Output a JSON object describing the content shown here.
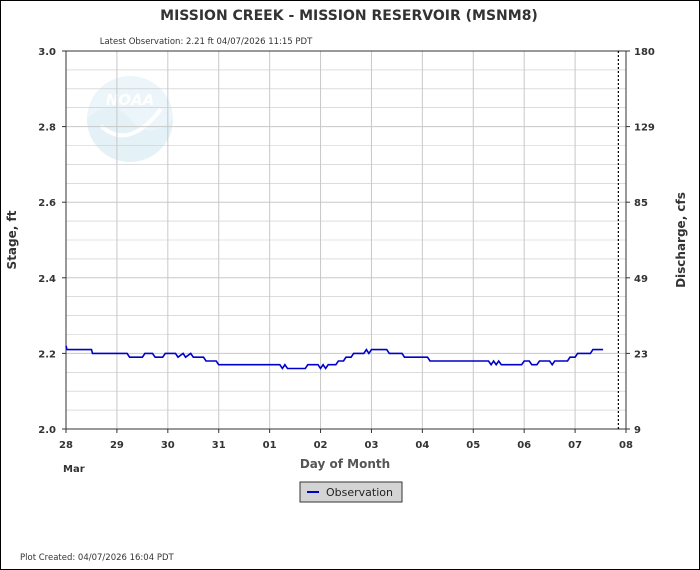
{
  "chart_data": {
    "type": "line",
    "title": "MISSION CREEK - MISSION RESERVOIR  (MSNM8)",
    "subtitle": "Latest Observation: 2.21 ft 04/07/2026 11:15 PDT",
    "xlabel": "Day of Month",
    "ylabel": "Stage, ft",
    "y2label": "Discharge, cfs",
    "x_ticks": [
      "28",
      "29",
      "30",
      "31",
      "01",
      "02",
      "03",
      "04",
      "05",
      "06",
      "07",
      "08"
    ],
    "x_month_label": "Mar",
    "y_ticks": [
      "2.0",
      "2.2",
      "2.4",
      "2.6",
      "2.8",
      "3.0"
    ],
    "y2_ticks": [
      "9",
      "23",
      "49",
      "85",
      "129",
      "180"
    ],
    "xlim_days": [
      0,
      11
    ],
    "ylim": [
      2.0,
      3.0
    ],
    "grid": true,
    "legend_position": "bottom-center",
    "colors": {
      "observation": "#0000cc",
      "grid": "#c8c8c8",
      "legend_bg": "#d4d4d4"
    },
    "series": [
      {
        "name": "Observation",
        "points": [
          [
            0.0,
            2.22
          ],
          [
            0.02,
            2.21
          ],
          [
            0.5,
            2.21
          ],
          [
            0.52,
            2.2
          ],
          [
            1.2,
            2.2
          ],
          [
            1.25,
            2.19
          ],
          [
            1.5,
            2.19
          ],
          [
            1.55,
            2.2
          ],
          [
            1.7,
            2.2
          ],
          [
            1.75,
            2.19
          ],
          [
            1.9,
            2.19
          ],
          [
            1.95,
            2.2
          ],
          [
            2.15,
            2.2
          ],
          [
            2.2,
            2.19
          ],
          [
            2.3,
            2.2
          ],
          [
            2.35,
            2.19
          ],
          [
            2.45,
            2.2
          ],
          [
            2.5,
            2.19
          ],
          [
            2.7,
            2.19
          ],
          [
            2.75,
            2.18
          ],
          [
            2.95,
            2.18
          ],
          [
            3.0,
            2.17
          ],
          [
            4.2,
            2.17
          ],
          [
            4.25,
            2.16
          ],
          [
            4.3,
            2.17
          ],
          [
            4.35,
            2.16
          ],
          [
            4.7,
            2.16
          ],
          [
            4.75,
            2.17
          ],
          [
            4.95,
            2.17
          ],
          [
            5.0,
            2.16
          ],
          [
            5.05,
            2.17
          ],
          [
            5.1,
            2.16
          ],
          [
            5.15,
            2.17
          ],
          [
            5.3,
            2.17
          ],
          [
            5.35,
            2.18
          ],
          [
            5.45,
            2.18
          ],
          [
            5.5,
            2.19
          ],
          [
            5.6,
            2.19
          ],
          [
            5.65,
            2.2
          ],
          [
            5.85,
            2.2
          ],
          [
            5.9,
            2.21
          ],
          [
            5.95,
            2.2
          ],
          [
            6.0,
            2.21
          ],
          [
            6.3,
            2.21
          ],
          [
            6.35,
            2.2
          ],
          [
            6.6,
            2.2
          ],
          [
            6.65,
            2.19
          ],
          [
            7.1,
            2.19
          ],
          [
            7.15,
            2.18
          ],
          [
            7.2,
            2.18
          ],
          [
            8.3,
            2.18
          ],
          [
            8.35,
            2.17
          ],
          [
            8.4,
            2.18
          ],
          [
            8.45,
            2.17
          ],
          [
            8.5,
            2.18
          ],
          [
            8.55,
            2.17
          ],
          [
            8.95,
            2.17
          ],
          [
            9.0,
            2.18
          ],
          [
            9.1,
            2.18
          ],
          [
            9.15,
            2.17
          ],
          [
            9.25,
            2.17
          ],
          [
            9.3,
            2.18
          ],
          [
            9.5,
            2.18
          ],
          [
            9.55,
            2.17
          ],
          [
            9.6,
            2.18
          ],
          [
            9.85,
            2.18
          ],
          [
            9.9,
            2.19
          ],
          [
            10.0,
            2.19
          ],
          [
            10.05,
            2.2
          ],
          [
            10.3,
            2.2
          ],
          [
            10.35,
            2.21
          ],
          [
            10.55,
            2.21
          ]
        ]
      }
    ],
    "forecast_divider_day": 10.85
  },
  "footer": {
    "plot_created": "Plot Created: 04/07/2026 16:04 PDT"
  },
  "watermark": {
    "text": "NOAA"
  }
}
